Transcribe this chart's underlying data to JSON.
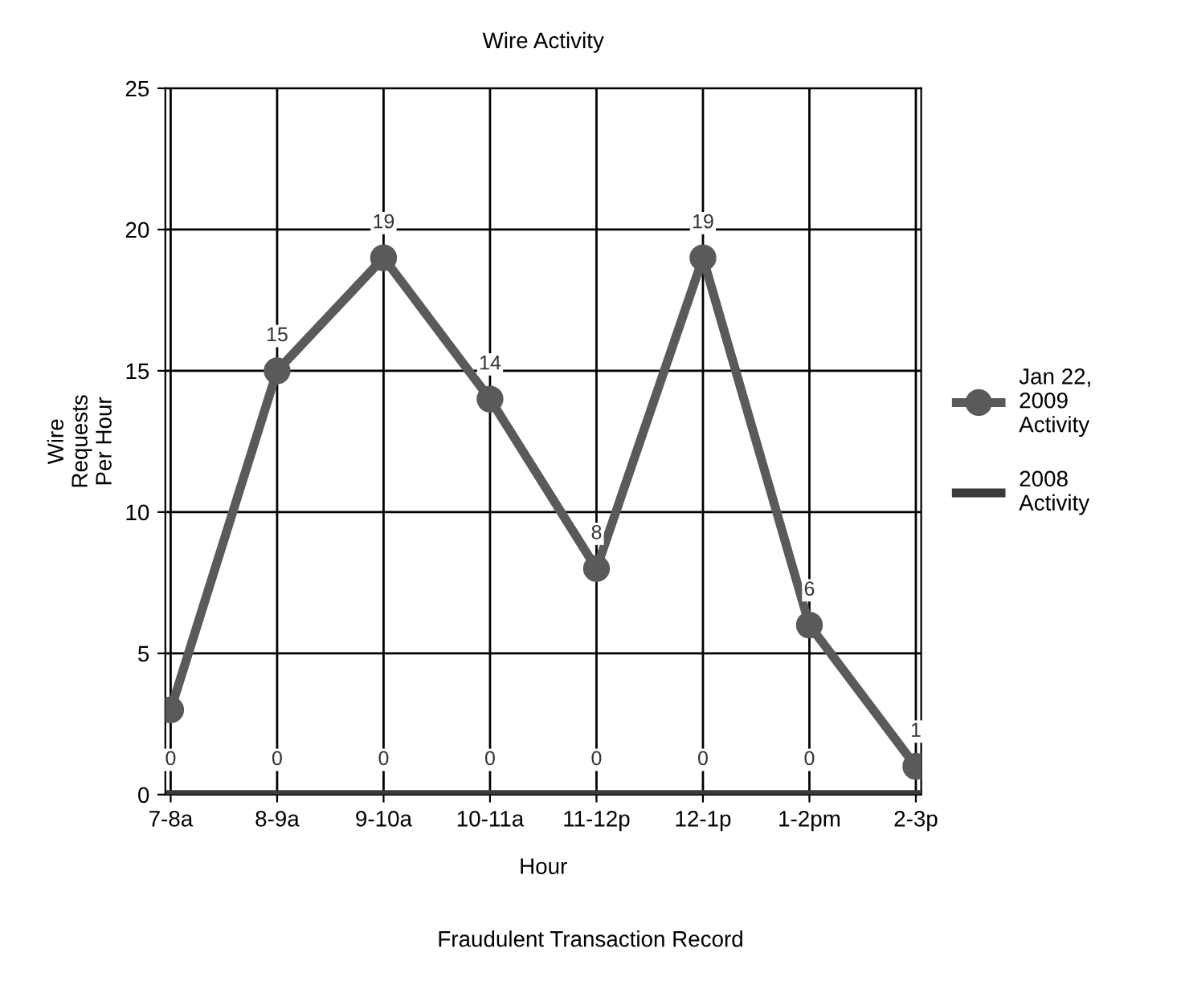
{
  "chart_data": {
    "type": "line",
    "title": "Wire Activity",
    "xlabel": "Hour",
    "ylabel": "Wire\nRequests\nPer Hour",
    "categories": [
      "7-8a",
      "8-9a",
      "9-10a",
      "10-11a",
      "11-12p",
      "12-1p",
      "1-2pm",
      "2-3p"
    ],
    "series": [
      {
        "name": "Jan 22,\n2009\nActivity",
        "color": "#5a5a5a",
        "marker": "circle",
        "values": [
          3,
          15,
          19,
          14,
          8,
          19,
          6,
          1
        ],
        "value_labels": [
          null,
          "15",
          "19",
          "14",
          "8",
          "19",
          "6",
          "1"
        ]
      },
      {
        "name": "2008\nActivity",
        "color": "#3a3a3a",
        "marker": "none",
        "values": [
          0,
          0,
          0,
          0,
          0,
          0,
          0,
          0
        ],
        "value_labels": [
          "0",
          "0",
          "0",
          "0",
          "0",
          "0",
          "0",
          null
        ]
      }
    ],
    "ylim": [
      0,
      25
    ],
    "yticks": [
      0,
      5,
      10,
      15,
      20,
      25
    ],
    "grid": true,
    "legend": "right",
    "annotations": [
      "Fraudulent Transaction Record"
    ]
  }
}
